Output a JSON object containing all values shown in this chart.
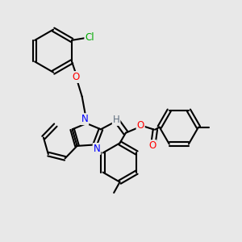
{
  "background_color": "#e8e8e8",
  "atom_colors": {
    "N": "#0000ff",
    "O": "#ff0000",
    "Cl": "#00aa00",
    "H": "#607080",
    "C": "#000000"
  },
  "line_color": "#000000",
  "line_width": 1.5,
  "font_size_atom": 8.5,
  "fig_width": 3.0,
  "fig_height": 3.0
}
